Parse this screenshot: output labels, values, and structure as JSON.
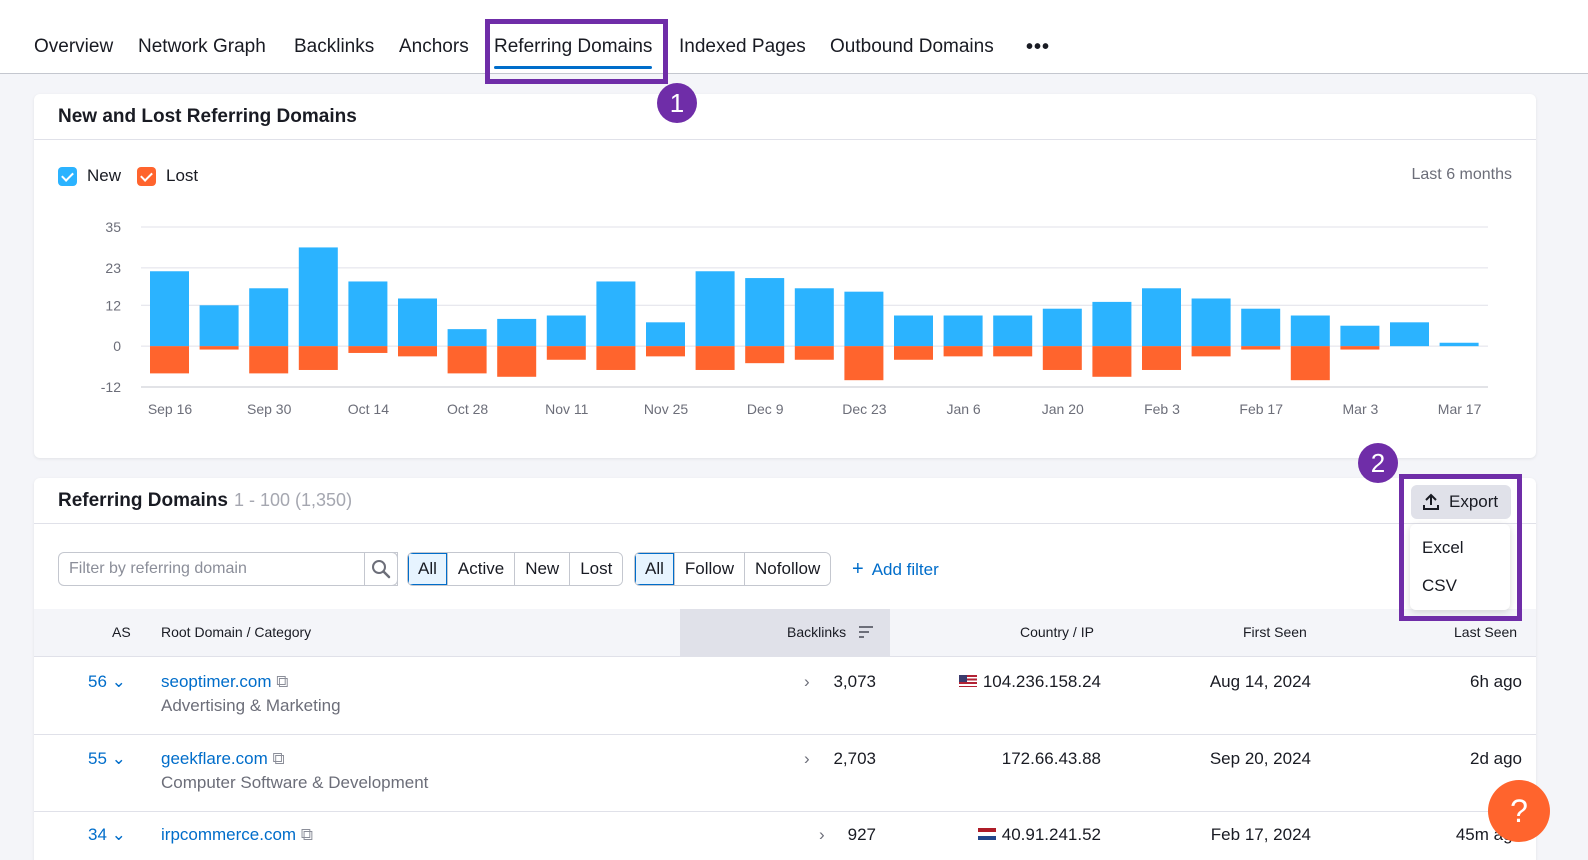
{
  "tabs": {
    "overview": "Overview",
    "network_graph": "Network Graph",
    "backlinks": "Backlinks",
    "anchors": "Anchors",
    "referring_domains": "Referring Domains",
    "indexed_pages": "Indexed Pages",
    "outbound_domains": "Outbound Domains",
    "more": "•••"
  },
  "markers": {
    "one": "1",
    "two": "2"
  },
  "chart_card": {
    "title": "New and Lost Referring Domains",
    "legend_new": "New",
    "legend_lost": "Lost",
    "period": "Last 6 months"
  },
  "chart_data": {
    "type": "bar",
    "title": "New and Lost Referring Domains",
    "stacked": "diverging",
    "yticks": [
      35,
      23,
      12,
      0,
      -12
    ],
    "ylim": [
      -12,
      35
    ],
    "xtick_labels": [
      "Sep 16",
      "Sep 30",
      "Oct 14",
      "Oct 28",
      "Nov 11",
      "Nov 25",
      "Dec 9",
      "Dec 23",
      "Jan 6",
      "Jan 20",
      "Feb 3",
      "Feb 17",
      "Mar 3",
      "Mar 17"
    ],
    "grid": true,
    "series": [
      {
        "name": "New",
        "color": "#2bb3ff",
        "values": [
          22,
          12,
          17,
          29,
          19,
          14,
          5,
          8,
          9,
          19,
          7,
          22,
          20,
          17,
          16,
          9,
          9,
          9,
          11,
          13,
          17,
          14,
          11,
          9,
          6,
          7,
          1
        ]
      },
      {
        "name": "Lost",
        "color": "#ff642d",
        "values": [
          -8,
          -1,
          -8,
          -7,
          -2,
          -3,
          -8,
          -9,
          -4,
          -7,
          -3,
          -7,
          -5,
          -4,
          -10,
          -4,
          -3,
          -3,
          -7,
          -9,
          -7,
          -3,
          -1,
          -10,
          -1,
          0,
          0
        ]
      }
    ]
  },
  "table_card": {
    "title": "Referring Domains",
    "count": "1 - 100 (1,350)",
    "filter_placeholder": "Filter by referring domain",
    "status_filters": [
      "All",
      "Active",
      "New",
      "Lost"
    ],
    "link_filters": [
      "All",
      "Follow",
      "Nofollow"
    ],
    "add_filter": "Add filter",
    "columns": {
      "as": "AS",
      "root_domain": "Root Domain / Category",
      "backlinks": "Backlinks",
      "country_ip": "Country / IP",
      "first_seen": "First Seen",
      "last_seen": "Last Seen"
    },
    "rows": [
      {
        "as": "56",
        "domain": "seoptimer.com",
        "category": "Advertising & Marketing",
        "backlinks": "3,073",
        "ip": "104.236.158.24",
        "first_seen": "Aug 14, 2024",
        "last_seen": "6h ago"
      },
      {
        "as": "55",
        "domain": "geekflare.com",
        "category": "Computer Software & Development",
        "backlinks": "2,703",
        "ip": "172.66.43.88",
        "first_seen": "Sep 20, 2024",
        "last_seen": "2d ago"
      },
      {
        "as": "34",
        "domain": "irpcommerce.com",
        "category": "",
        "backlinks": "927",
        "ip": "40.91.241.52",
        "first_seen": "Feb 17, 2024",
        "last_seen": "45m ago"
      }
    ]
  },
  "export": {
    "label": "Export",
    "options": [
      "Excel",
      "CSV"
    ]
  },
  "help": {
    "label": "?"
  }
}
